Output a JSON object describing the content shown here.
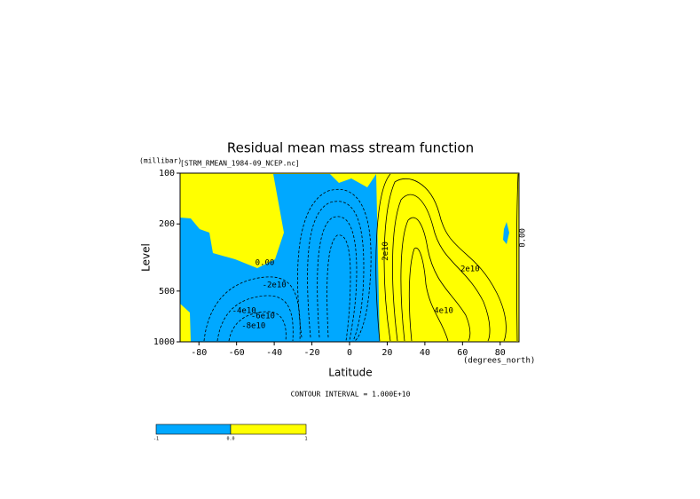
{
  "chart_data": {
    "type": "contour",
    "title": "Residual mean mass stream function",
    "subtitle": "[STRM_RMEAN_1984-09_NCEP.nc]",
    "y_units": "(millibar)",
    "y_label": "Level",
    "x_label": "Latitude",
    "x_units": "(degrees_north)",
    "note": "CONTOUR INTERVAL = 1.000E+10",
    "xlim": [
      -90,
      90
    ],
    "xticks": [
      -80,
      -60,
      -40,
      -20,
      0,
      20,
      40,
      60,
      80
    ],
    "ylim": [
      1000,
      100
    ],
    "yticks": [
      100,
      200,
      500,
      1000
    ],
    "ylog": true,
    "negative_color": "#00a8ff",
    "positive_color": "#ffff00",
    "contour_labels": [
      {
        "text": "0.00",
        "lat": -45,
        "level": 340
      },
      {
        "text": "-2e10",
        "lat": -40,
        "level": 460
      },
      {
        "text": "-4e10",
        "lat": -56,
        "level": 655
      },
      {
        "text": "-6e10",
        "lat": -46,
        "level": 703
      },
      {
        "text": "-8e10",
        "lat": -51,
        "level": 804
      },
      {
        "text": "2e10",
        "lat": 64,
        "level": 370
      },
      {
        "text": "4e10",
        "lat": 50,
        "level": 655
      },
      {
        "text": "2e10",
        "lat": 19,
        "level": 290
      },
      {
        "text": "0.00",
        "lat": 92,
        "level": 242
      }
    ],
    "colorbar_labels": [
      "-1",
      "0.0",
      "1"
    ]
  }
}
